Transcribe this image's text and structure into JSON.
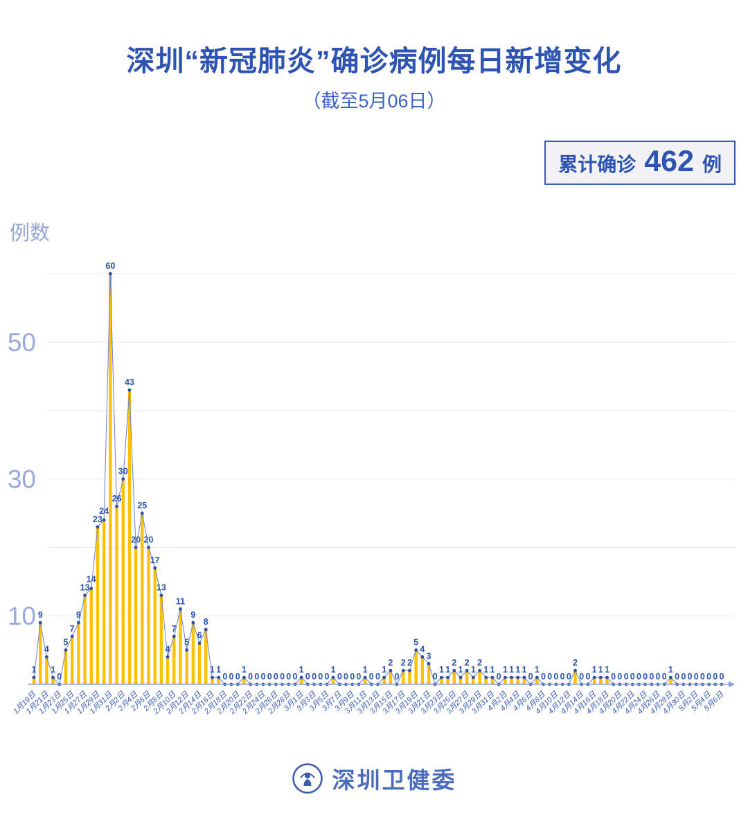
{
  "header": {
    "title": "深圳“新冠肺炎”确诊病例每日新增变化",
    "subtitle": "（截至5月06日）",
    "badge": {
      "prefix": "累计确诊",
      "count": "462",
      "suffix": "例"
    }
  },
  "colors": {
    "title_text": "#2D54B2",
    "subtitle_text": "#3E63C6",
    "badge_border": "#3B5BB5",
    "badge_bg": "#F2F2F4",
    "axis_light": "#96A6D8",
    "brand_blue": "#4C6CBE"
  },
  "chart_data": {
    "type": "bar",
    "title": "深圳“新冠肺炎”确诊病例每日新增变化",
    "subtitle": "（截至5月06日）",
    "cumulative_total_label": "累计确诊 462 例",
    "ylabel": "例数",
    "xlabel": "",
    "ylim": [
      0,
      62
    ],
    "y_ticks_labeled": [
      10,
      30,
      50
    ],
    "gridlines": [
      10,
      20,
      30,
      40,
      50,
      60
    ],
    "legend": "none",
    "x_label_every": 2,
    "colors": {
      "bar": "#FFC104",
      "line": "#6880C8",
      "point": "#2A4FA5",
      "value_text": "#2C54AE",
      "tick_text": "#3A5BBA",
      "axis": "#8EA2D8",
      "axis_text": "#9AA9DB",
      "grid": "#E9E9E9"
    },
    "categories": [
      "1月19日",
      "1月20日",
      "1月21日",
      "1月22日",
      "1月23日",
      "1月24日",
      "1月25日",
      "1月26日",
      "1月27日",
      "1月28日",
      "1月29日",
      "1月30日",
      "1月31日",
      "2月1日",
      "2月2日",
      "2月3日",
      "2月4日",
      "2月5日",
      "2月6日",
      "2月7日",
      "2月8日",
      "2月9日",
      "2月10日",
      "2月11日",
      "2月12日",
      "2月13日",
      "2月14日",
      "2月15日",
      "2月16日",
      "2月17日",
      "2月18日",
      "2月19日",
      "2月20日",
      "2月21日",
      "2月22日",
      "2月23日",
      "2月24日",
      "2月25日",
      "2月26日",
      "2月27日",
      "2月28日",
      "2月29日",
      "3月1日",
      "3月2日",
      "3月3日",
      "3月4日",
      "3月5日",
      "3月6日",
      "3月7日",
      "3月8日",
      "3月9日",
      "3月10日",
      "3月11日",
      "3月12日",
      "3月13日",
      "3月14日",
      "3月15日",
      "3月16日",
      "3月17日",
      "3月18日",
      "3月19日",
      "3月20日",
      "3月21日",
      "3月22日",
      "3月23日",
      "3月24日",
      "3月25日",
      "3月26日",
      "3月27日",
      "3月28日",
      "3月29日",
      "3月30日",
      "3月31日",
      "4月1日",
      "4月2日",
      "4月3日",
      "4月4日",
      "4月5日",
      "4月6日",
      "4月7日",
      "4月8日",
      "4月9日",
      "4月10日",
      "4月11日",
      "4月12日",
      "4月13日",
      "4月14日",
      "4月15日",
      "4月16日",
      "4月17日",
      "4月18日",
      "4月19日",
      "4月20日",
      "4月21日",
      "4月22日",
      "4月23日",
      "4月24日",
      "4月25日",
      "4月26日",
      "4月27日",
      "4月28日",
      "4月29日",
      "4月30日",
      "5月1日",
      "5月2日",
      "5月3日",
      "5月4日",
      "5月5日",
      "5月6日"
    ],
    "values": [
      1,
      9,
      4,
      1,
      0,
      5,
      7,
      9,
      13,
      14,
      23,
      24,
      60,
      26,
      30,
      43,
      20,
      25,
      20,
      17,
      13,
      4,
      7,
      11,
      5,
      9,
      6,
      8,
      1,
      1,
      0,
      0,
      0,
      1,
      0,
      0,
      0,
      0,
      0,
      0,
      0,
      0,
      1,
      0,
      0,
      0,
      0,
      1,
      0,
      0,
      0,
      0,
      1,
      0,
      0,
      1,
      2,
      0,
      2,
      2,
      5,
      4,
      3,
      0,
      1,
      1,
      2,
      1,
      2,
      1,
      2,
      1,
      1,
      0,
      1,
      1,
      1,
      1,
      0,
      1,
      0,
      0,
      0,
      0,
      0,
      2,
      0,
      0,
      1,
      1,
      1,
      0,
      0,
      0,
      0,
      0,
      0,
      0,
      0,
      0,
      1,
      0,
      0,
      0,
      0,
      0,
      0,
      0,
      0
    ]
  },
  "footer": {
    "brand": "深圳卫健委"
  }
}
